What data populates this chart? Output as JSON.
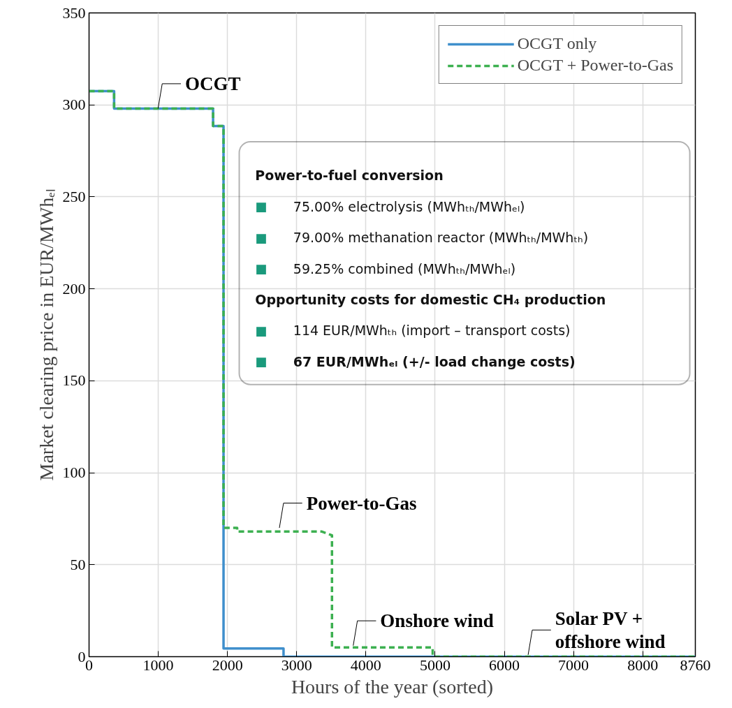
{
  "chart_data": {
    "type": "line",
    "xlabel": "Hours of the year (sorted)",
    "ylabel": "Market clearing price in EUR/MWhₑₗ",
    "xlim": [
      0,
      8760
    ],
    "ylim": [
      0,
      350
    ],
    "xticks": [
      0,
      1000,
      2000,
      3000,
      4000,
      5000,
      6000,
      7000,
      8000,
      8760
    ],
    "yticks": [
      0,
      50,
      100,
      150,
      200,
      250,
      300,
      350
    ],
    "grid": true,
    "legend": "top right",
    "series": [
      {
        "name": "OCGT only",
        "color": "#3f8fcc",
        "line_style": "solid",
        "x": [
          0,
          362,
          362,
          1792,
          1792,
          1943,
          1943,
          2810,
          2810,
          8760
        ],
        "values": [
          307.5,
          307.5,
          298,
          298,
          288.5,
          288.5,
          4.5,
          4.5,
          0,
          0
        ]
      },
      {
        "name": "OCGT + Power-to-Gas",
        "color": "#3cb050",
        "line_style": "dashed",
        "x": [
          0,
          362,
          362,
          1792,
          1792,
          1943,
          1943,
          2140,
          2140,
          3365,
          3510,
          3510,
          4965,
          4965,
          8760
        ],
        "values": [
          307.5,
          307.5,
          298,
          298,
          288.5,
          288.5,
          70,
          70,
          68,
          68,
          66,
          5,
          5,
          0,
          0
        ]
      }
    ],
    "annotations": [
      {
        "text": "OCGT",
        "x": 997,
        "y": 298
      },
      {
        "text": "Power-to-Gas",
        "x": 2750,
        "y": 70
      },
      {
        "text": "Onshore wind",
        "x": 3817,
        "y": 6
      },
      {
        "text": "Solar PV +\noffshore wind",
        "x": 6344,
        "y": 1
      },
      "Power-to-fuel conversion",
      "■ 75.00% electrolysis (MWhₜₕ/MWhₑₗ)",
      "■ 79.00% methanation reactor (MWhₜₕ/MWhₜₕ)",
      "■ 59.25% combined (MWhₜₕ/MWhₑₗ)",
      "Opportunity costs for domestic CH₄ production",
      "■ 114 EUR/MWhₜₕ (import – transport costs)",
      "■ 67 EUR/MWhₑₗ (+/- load change costs)"
    ]
  }
}
